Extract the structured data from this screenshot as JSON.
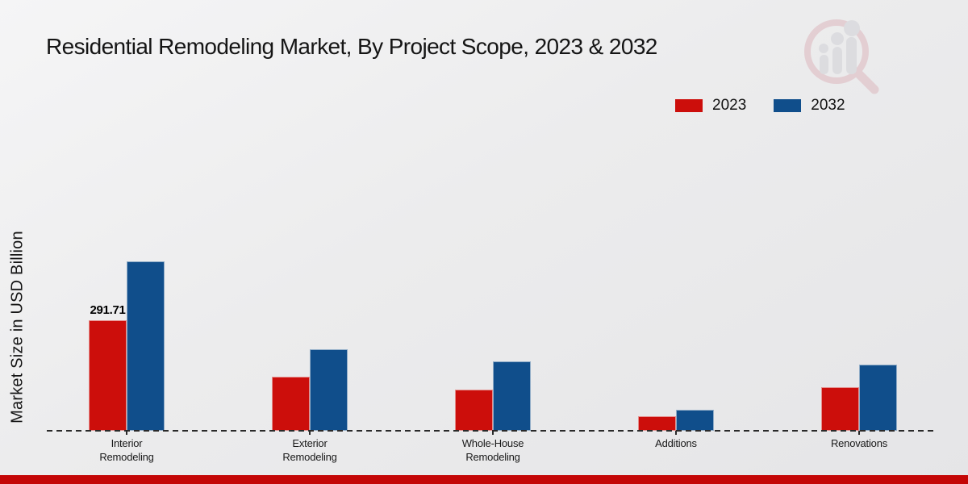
{
  "title": "Residential Remodeling Market, By Project Scope, 2023 & 2032",
  "ylabel": "Market Size in USD Billion",
  "colors": {
    "series_2023": "#cc0e0b",
    "series_2032": "#104e8b",
    "footer_band": "#c40606",
    "baseline": "#2a2a2a"
  },
  "legend": {
    "position": "top-right",
    "items": [
      {
        "label": "2023",
        "color": "#cc0e0b"
      },
      {
        "label": "2032",
        "color": "#104e8b"
      }
    ]
  },
  "watermark_icon": "magnifier-bar-chart-logo",
  "chart_data": {
    "type": "bar",
    "title": "Residential Remodeling Market, By Project Scope, 2023 & 2032",
    "xlabel": "",
    "ylabel": "Market Size in USD Billion",
    "categories": [
      "Interior\nRemodeling",
      "Exterior\nRemodeling",
      "Whole-House\nRemodeling",
      "Additions",
      "Renovations"
    ],
    "series": [
      {
        "name": "2023",
        "color": "#cc0e0b",
        "values": [
          291.71,
          142.5,
          108.5,
          38.3,
          115.0
        ]
      },
      {
        "name": "2032",
        "color": "#104e8b",
        "values": [
          447.0,
          215.0,
          183.0,
          55.4,
          174.6
        ]
      }
    ],
    "bar_labels": [
      {
        "series_index": 0,
        "category_index": 0,
        "text": "291.71"
      }
    ],
    "ylim": [
      0,
      500
    ],
    "grid": false,
    "y_axis_ticks_visible": false,
    "baseline_style": "dashed",
    "legend_position": "top-right"
  }
}
